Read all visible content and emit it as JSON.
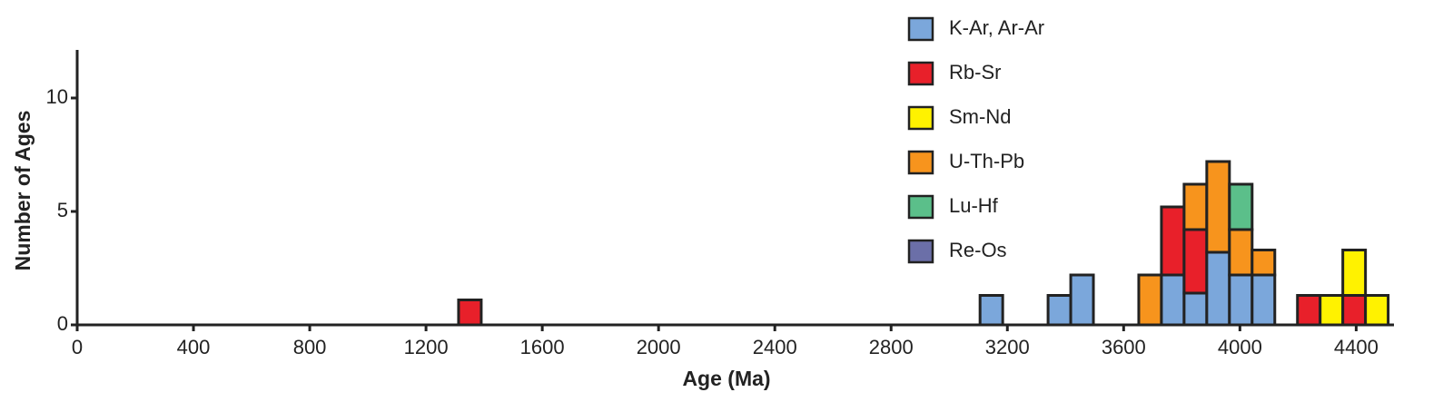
{
  "chart_data": {
    "type": "stacked-histogram",
    "x_label": "Age (Ma)",
    "y_label": "Number of Ages",
    "bins": [
      1312,
      1390,
      1468,
      1546,
      1624,
      1702,
      1780,
      1858,
      1936,
      2014,
      2092,
      2170,
      2248,
      2326,
      2404,
      2482,
      2560,
      2638,
      2716,
      2794,
      2872,
      2950,
      3028,
      3106,
      3184,
      3262,
      3340,
      3418,
      3496,
      3574,
      3652,
      3730,
      3808,
      3886,
      3964,
      4042,
      4120,
      4198,
      4276,
      4354,
      4432,
      4510
    ],
    "series": [
      {
        "name": "K-Ar, Ar-Ar",
        "color": "#7ba7db",
        "values": [
          0,
          0,
          0,
          0,
          0,
          0,
          0,
          0,
          0,
          0,
          0,
          0,
          0,
          0,
          0,
          0,
          0,
          0,
          0,
          0,
          0,
          0,
          0,
          1.3,
          0,
          0,
          1.3,
          2.2,
          0,
          0,
          0,
          2.2,
          1.4,
          3.2,
          2.2,
          2.2,
          0,
          0,
          0,
          0,
          0
        ]
      },
      {
        "name": "Rb-Sr",
        "color": "#e8202a",
        "values": [
          1.1,
          0,
          0,
          0,
          0,
          0,
          0,
          0,
          0,
          0,
          0,
          0,
          0,
          0,
          0,
          0,
          0,
          0,
          0,
          0,
          0,
          0,
          0,
          0,
          0,
          0,
          0,
          0,
          0,
          0,
          0,
          3.0,
          2.8,
          0,
          0,
          0,
          0,
          1.3,
          0,
          1.3,
          0
        ]
      },
      {
        "name": "Sm-Nd",
        "color": "#fff200",
        "values": [
          0,
          0,
          0,
          0,
          0,
          0,
          0,
          0,
          0,
          0,
          0,
          0,
          0,
          0,
          0,
          0,
          0,
          0,
          0,
          0,
          0,
          0,
          0,
          0,
          0,
          0,
          0,
          0,
          0,
          0,
          0,
          0,
          0,
          0,
          0,
          0,
          0,
          0,
          1.3,
          2.0,
          1.3
        ]
      },
      {
        "name": "U-Th-Pb",
        "color": "#f7941d",
        "values": [
          0,
          0,
          0,
          0,
          0,
          0,
          0,
          0,
          0,
          0,
          0,
          0,
          0,
          0,
          0,
          0,
          0,
          0,
          0,
          0,
          0,
          0,
          0,
          0,
          0,
          0,
          0,
          0,
          0,
          0,
          2.2,
          0,
          2.0,
          4.0,
          2.0,
          1.1,
          0,
          0,
          0,
          0,
          0
        ]
      },
      {
        "name": "Lu-Hf",
        "color": "#5bbf8a",
        "values": [
          0,
          0,
          0,
          0,
          0,
          0,
          0,
          0,
          0,
          0,
          0,
          0,
          0,
          0,
          0,
          0,
          0,
          0,
          0,
          0,
          0,
          0,
          0,
          0,
          0,
          0,
          0,
          0,
          0,
          0,
          0,
          0,
          0,
          0,
          2.0,
          0,
          0,
          0,
          0,
          0,
          0
        ]
      },
      {
        "name": "Re-Os",
        "color": "#6b6fa8",
        "values": [
          0,
          0,
          0,
          0,
          0,
          0,
          0,
          0,
          0,
          0,
          0,
          0,
          0,
          0,
          0,
          0,
          0,
          0,
          0,
          0,
          0,
          0,
          0,
          0,
          0,
          0,
          0,
          0,
          0,
          0,
          0,
          0,
          0,
          0,
          0,
          0,
          0,
          0,
          0,
          0,
          0
        ]
      }
    ],
    "xlim": [
      0,
      4530
    ],
    "xticks": [
      0,
      400,
      800,
      1200,
      1600,
      2000,
      2400,
      2800,
      3200,
      3600,
      4000,
      4400
    ],
    "ylim": [
      0,
      12
    ],
    "yticks": [
      0,
      5,
      10
    ]
  }
}
